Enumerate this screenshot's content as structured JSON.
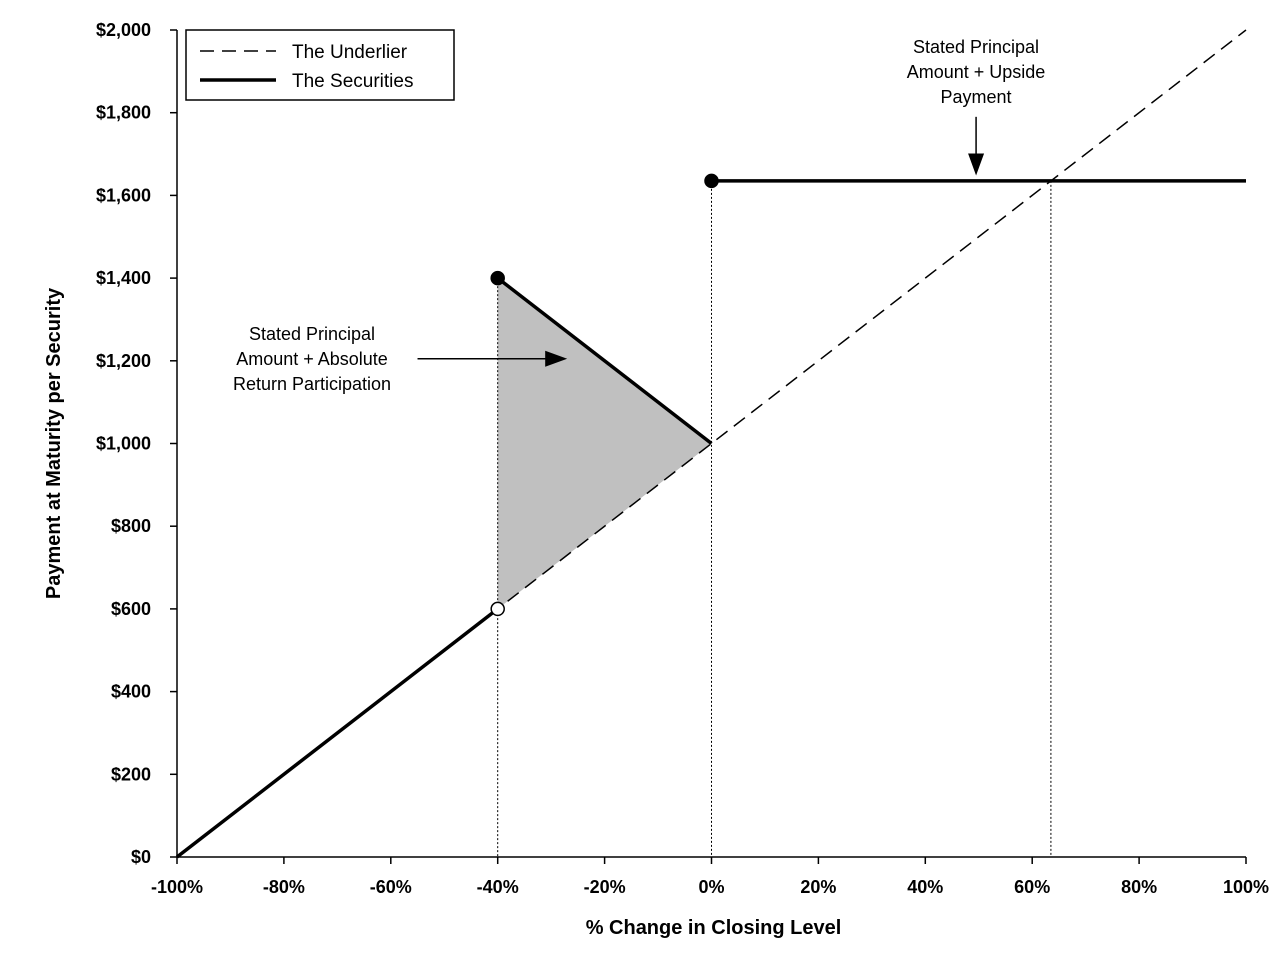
{
  "chart_data": {
    "type": "line",
    "title": "",
    "xlabel": "% Change in Closing Level",
    "ylabel": "Payment at Maturity per Security",
    "xlim": [
      -100,
      100
    ],
    "ylim": [
      0,
      2000
    ],
    "x_ticks": [
      -100,
      -80,
      -60,
      -40,
      -20,
      0,
      20,
      40,
      60,
      80,
      100
    ],
    "x_tick_labels": [
      "-100%",
      "-80%",
      "-60%",
      "-40%",
      "-20%",
      "0%",
      "20%",
      "40%",
      "60%",
      "80%",
      "100%"
    ],
    "y_ticks": [
      0,
      200,
      400,
      600,
      800,
      1000,
      1200,
      1400,
      1600,
      1800,
      2000
    ],
    "y_tick_labels": [
      "$0",
      "$200",
      "$400",
      "$600",
      "$800",
      "$1,000",
      "$1,200",
      "$1,400",
      "$1,600",
      "$1,800",
      "$2,000"
    ],
    "grid": false,
    "legend_position": "top-left",
    "series": [
      {
        "name": "The Underlier",
        "style": "dashed",
        "x": [
          -100,
          100
        ],
        "y": [
          0,
          2000
        ]
      },
      {
        "name": "The Securities",
        "style": "solid",
        "segments": [
          {
            "x": [
              -100,
              -40
            ],
            "y": [
              0,
              600
            ]
          },
          {
            "x": [
              -40,
              0
            ],
            "y": [
              1400,
              1000
            ]
          },
          {
            "x": [
              0,
              100
            ],
            "y": [
              1635,
              1635
            ]
          }
        ]
      }
    ],
    "markers": [
      {
        "x": -40,
        "y": 1400,
        "fill": "filled"
      },
      {
        "x": -40,
        "y": 600,
        "fill": "open"
      },
      {
        "x": 0,
        "y": 1635,
        "fill": "filled"
      }
    ],
    "shaded_region": {
      "x": [
        -40,
        0,
        -40
      ],
      "y": [
        600,
        1000,
        1400
      ],
      "color": "#c0c0c0"
    },
    "reference_lines": [
      {
        "x": -40,
        "y_to": 1400
      },
      {
        "x": 0,
        "y_to": 1635
      },
      {
        "x": 63.5,
        "y_to": 1635
      }
    ],
    "annotations": [
      {
        "lines": [
          "Stated Principal",
          "Amount + Absolute",
          "Return Participation"
        ],
        "arrow_from": [
          -55,
          1205
        ],
        "arrow_to": [
          -27,
          1205
        ]
      },
      {
        "lines": [
          "Stated Principal",
          "Amount + Upside",
          "Payment"
        ],
        "arrow_from": [
          49.5,
          1790
        ],
        "arrow_to": [
          49.5,
          1648
        ]
      }
    ]
  }
}
